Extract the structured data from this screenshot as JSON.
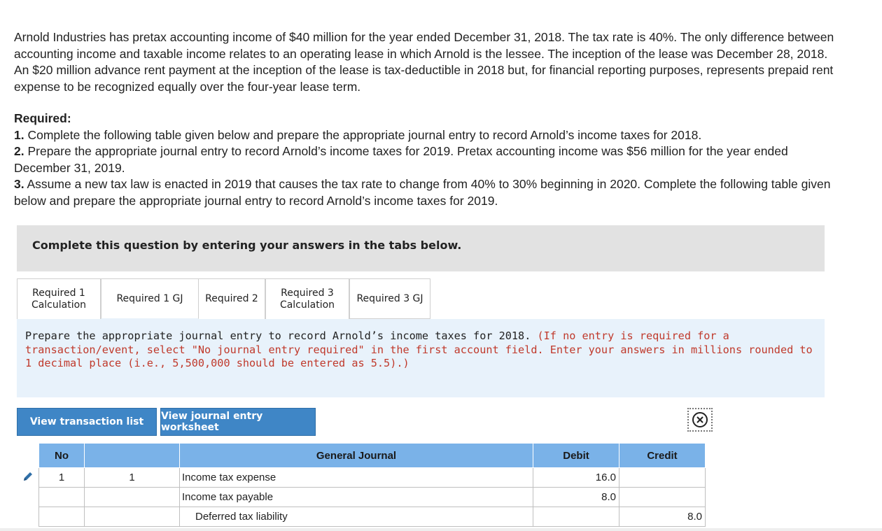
{
  "intro": "Arnold Industries has pretax accounting income of $40 million for the year ended December 31, 2018. The tax rate is 40%. The only difference between accounting income and taxable income relates to an operating lease in which Arnold is the lessee. The inception of the lease was December 28, 2018. An $20 million advance rent payment at the inception of the lease is tax-deductible in 2018 but, for financial reporting purposes, represents prepaid rent expense to be recognized equally over the four-year lease term.",
  "required": {
    "title": "Required:",
    "items": [
      {
        "num": "1.",
        "text": " Complete the following table given below and prepare the appropriate journal entry to record Arnold’s income taxes for 2018."
      },
      {
        "num": "2.",
        "text": " Prepare the appropriate journal entry to record Arnold’s income taxes for 2019. Pretax accounting income was $56 million for the year ended December 31, 2019."
      },
      {
        "num": "3.",
        "text": " Assume a new tax law is enacted in 2019 that causes the tax rate to change from 40% to 30% beginning in 2020. Complete the following table given below and prepare the appropriate journal entry to record Arnold’s income taxes for 2019."
      }
    ]
  },
  "instruction_bar": "Complete this question by entering your answers in the tabs below.",
  "tabs": [
    {
      "label": "Required 1\nCalculation",
      "active": false
    },
    {
      "label": "Required 1 GJ",
      "active": true
    },
    {
      "label": "Required 2",
      "active": false
    },
    {
      "label": "Required 3\nCalculation",
      "active": false
    },
    {
      "label": "Required 3 GJ",
      "active": false
    }
  ],
  "panel": {
    "text": "Prepare the appropriate journal entry to record Arnold’s income taxes for 2018.",
    "note": "(If no entry is required for a transaction/event, select \"No journal entry required\" in the first account field. Enter your answers in millions rounded to 1 decimal place (i.e., 5,500,000 should be entered as 5.5).)"
  },
  "buttons": {
    "view_transaction_list": "View transaction list",
    "view_journal_worksheet": "View journal entry worksheet"
  },
  "journal": {
    "headers": {
      "no": "No",
      "date": "",
      "account": "General Journal",
      "debit": "Debit",
      "credit": "Credit"
    },
    "rows": [
      {
        "no": "1",
        "date": "1",
        "account": "Income tax expense",
        "debit": "16.0",
        "credit": "",
        "indent": false
      },
      {
        "no": "",
        "date": "",
        "account": "Income tax payable",
        "debit": "8.0",
        "credit": "",
        "indent": false
      },
      {
        "no": "",
        "date": "",
        "account": "Deferred tax liability",
        "debit": "",
        "credit": "8.0",
        "indent": true
      }
    ]
  },
  "colors": {
    "button_bg": "#3f86c6",
    "header_bg": "#7ab2e8",
    "panel_bg": "#e8f2fb",
    "note_red": "#c0392b"
  },
  "icons": {
    "edit": "pencil-icon",
    "close": "close-circle-icon"
  }
}
